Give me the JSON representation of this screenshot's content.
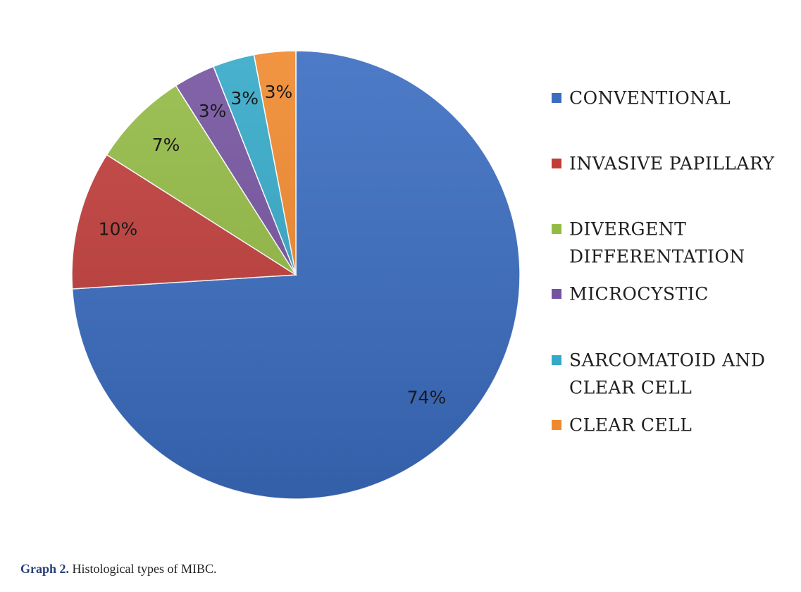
{
  "chart_data": {
    "type": "pie",
    "title": "",
    "slices": [
      {
        "label": "CONVENTIONAL",
        "legend_lines": [
          "CONVENTIONAL"
        ],
        "value": 74,
        "display": "74%",
        "color": "#3a6cc0"
      },
      {
        "label": "INVASIVE PAPILLARY",
        "legend_lines": [
          "INVASIVE PAPILLARY"
        ],
        "value": 10,
        "display": "10%",
        "color": "#c03d3a"
      },
      {
        "label": "DIVERGENT DIFFERENTATION",
        "legend_lines": [
          "DIVERGENT",
          "DIFFERENTATION"
        ],
        "value": 7,
        "display": "7%",
        "color": "#93bb44"
      },
      {
        "label": "MICROCYSTIC",
        "legend_lines": [
          "MICROCYSTIC"
        ],
        "value": 3,
        "display": "3%",
        "color": "#7553a0"
      },
      {
        "label": "SARCOMATOID AND CLEAR CELL",
        "legend_lines": [
          "SARCOMATOID AND",
          "CLEAR CELL"
        ],
        "value": 3,
        "display": "3%",
        "color": "#34a9c8"
      },
      {
        "label": "CLEAR CELL",
        "legend_lines": [
          "CLEAR CELL"
        ],
        "value": 3,
        "display": "3%",
        "color": "#f0892e"
      }
    ],
    "legend_position": "right"
  },
  "caption": {
    "prefix": "Graph 2.",
    "text": " Histological types of MIBC."
  }
}
